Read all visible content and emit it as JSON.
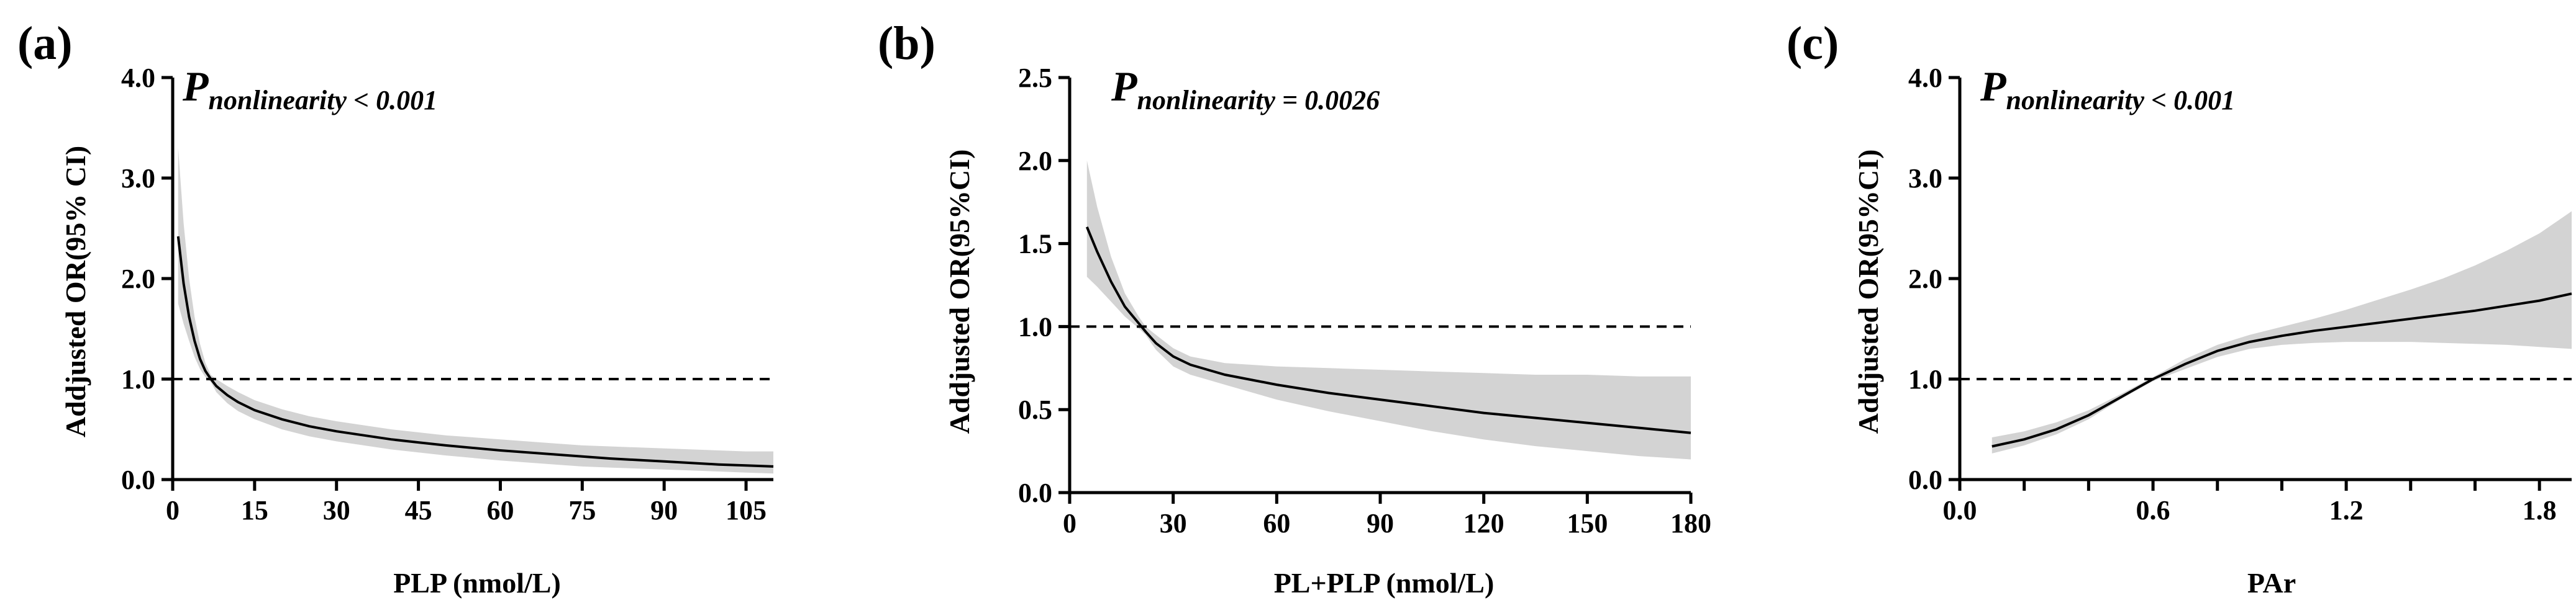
{
  "colors": {
    "ci_band": "#d3d3d3",
    "line": "#000000",
    "reference": "#000000"
  },
  "chart_data": [
    {
      "type": "line",
      "panel_label": "(a)",
      "p_value": {
        "symbol": "P",
        "subscript": "nonlinearity",
        "text": " < 0.001"
      },
      "xlabel": "PLP (nmol/L)",
      "ylabel": "Addjusted OR(95% CI)",
      "xlim": [
        0,
        110
      ],
      "ylim": [
        0,
        4
      ],
      "xticks": [
        0,
        15,
        30,
        45,
        60,
        75,
        90,
        105
      ],
      "xtick_labels": [
        "0",
        "15",
        "30",
        "45",
        "60",
        "75",
        "90",
        "105"
      ],
      "yticks": [
        0,
        1,
        2,
        3,
        4
      ],
      "ytick_labels": [
        "0.0",
        "1.0",
        "2.0",
        "3.0",
        "4.0"
      ],
      "reference_y": 1.0,
      "series": [
        {
          "name": "Adjusted OR",
          "x": [
            1,
            2,
            3,
            4,
            5,
            6,
            7,
            8,
            10,
            12,
            15,
            20,
            25,
            30,
            40,
            45,
            50,
            60,
            70,
            75,
            80,
            90,
            100,
            105,
            110
          ],
          "y": [
            2.42,
            1.95,
            1.62,
            1.38,
            1.2,
            1.08,
            1.0,
            0.93,
            0.84,
            0.77,
            0.69,
            0.6,
            0.53,
            0.48,
            0.4,
            0.37,
            0.34,
            0.29,
            0.25,
            0.23,
            0.21,
            0.18,
            0.15,
            0.14,
            0.13
          ],
          "lower": [
            1.75,
            1.55,
            1.38,
            1.22,
            1.1,
            1.02,
            0.97,
            0.87,
            0.76,
            0.68,
            0.6,
            0.5,
            0.43,
            0.38,
            0.3,
            0.27,
            0.24,
            0.19,
            0.15,
            0.13,
            0.12,
            0.1,
            0.08,
            0.07,
            0.06
          ],
          "upper": [
            3.3,
            2.55,
            2.0,
            1.62,
            1.35,
            1.16,
            1.04,
            1.0,
            0.93,
            0.87,
            0.79,
            0.7,
            0.63,
            0.58,
            0.5,
            0.47,
            0.44,
            0.4,
            0.36,
            0.34,
            0.33,
            0.31,
            0.29,
            0.28,
            0.28
          ]
        }
      ]
    },
    {
      "type": "line",
      "panel_label": "(b)",
      "p_value": {
        "symbol": "P",
        "subscript": "nonlinearity",
        "text": " = 0.0026"
      },
      "xlabel": "PL+PLP (nmol/L)",
      "ylabel": "Addjusted OR(95%CI)",
      "xlim": [
        0,
        180
      ],
      "ylim": [
        0,
        2.5
      ],
      "xticks": [
        0,
        30,
        60,
        90,
        120,
        150,
        180
      ],
      "xtick_labels": [
        "0",
        "30",
        "60",
        "90",
        "120",
        "150",
        "180"
      ],
      "yticks": [
        0,
        0.5,
        1,
        1.5,
        2,
        2.5
      ],
      "ytick_labels": [
        "0.0",
        "0.5",
        "1.0",
        "1.5",
        "2.0",
        "2.5"
      ],
      "reference_y": 1.0,
      "series": [
        {
          "name": "Adjusted OR",
          "x": [
            5,
            8,
            12,
            16,
            20,
            22,
            25,
            30,
            35,
            40,
            45,
            60,
            75,
            90,
            105,
            120,
            135,
            150,
            165,
            180
          ],
          "y": [
            1.6,
            1.45,
            1.27,
            1.12,
            1.02,
            0.97,
            0.9,
            0.82,
            0.77,
            0.74,
            0.71,
            0.65,
            0.6,
            0.56,
            0.52,
            0.48,
            0.45,
            0.42,
            0.39,
            0.36
          ],
          "lower": [
            1.3,
            1.24,
            1.15,
            1.06,
            0.99,
            0.95,
            0.86,
            0.76,
            0.71,
            0.68,
            0.65,
            0.56,
            0.49,
            0.43,
            0.37,
            0.32,
            0.28,
            0.25,
            0.22,
            0.2
          ],
          "upper": [
            2.0,
            1.72,
            1.42,
            1.2,
            1.06,
            1.0,
            0.95,
            0.87,
            0.82,
            0.8,
            0.78,
            0.76,
            0.75,
            0.74,
            0.73,
            0.72,
            0.71,
            0.71,
            0.7,
            0.7
          ]
        }
      ]
    },
    {
      "type": "line",
      "panel_label": "(c)",
      "p_value": {
        "symbol": "P",
        "subscript": "nonlinearity",
        "text": " < 0.001"
      },
      "xlabel": "PAr",
      "ylabel": "Addjusted OR(95%CI)",
      "xlim": [
        0,
        1.9
      ],
      "ylim": [
        0,
        4
      ],
      "xticks": [
        0,
        0.2,
        0.4,
        0.6,
        0.8,
        1.0,
        1.2,
        1.4,
        1.6,
        1.8
      ],
      "xtick_labels": [
        "0.0",
        "",
        "",
        "0.6",
        "",
        "",
        "1.2",
        "",
        "",
        "1.8"
      ],
      "yticks": [
        0,
        1,
        2,
        3,
        4
      ],
      "ytick_labels": [
        "0.0",
        "1.0",
        "2.0",
        "3.0",
        "4.0"
      ],
      "reference_y": 1.0,
      "series": [
        {
          "name": "Adjusted OR",
          "x": [
            0.1,
            0.2,
            0.3,
            0.4,
            0.5,
            0.6,
            0.7,
            0.8,
            0.9,
            1.0,
            1.1,
            1.2,
            1.3,
            1.4,
            1.5,
            1.6,
            1.7,
            1.8,
            1.9
          ],
          "y": [
            0.33,
            0.4,
            0.5,
            0.64,
            0.82,
            1.0,
            1.15,
            1.28,
            1.37,
            1.43,
            1.48,
            1.52,
            1.56,
            1.6,
            1.64,
            1.68,
            1.73,
            1.78,
            1.85
          ],
          "lower": [
            0.26,
            0.34,
            0.45,
            0.6,
            0.8,
            0.98,
            1.1,
            1.22,
            1.3,
            1.34,
            1.36,
            1.37,
            1.37,
            1.37,
            1.36,
            1.35,
            1.34,
            1.32,
            1.3
          ],
          "upper": [
            0.42,
            0.48,
            0.57,
            0.69,
            0.85,
            1.02,
            1.2,
            1.34,
            1.44,
            1.52,
            1.6,
            1.69,
            1.79,
            1.89,
            2.0,
            2.13,
            2.28,
            2.45,
            2.67
          ]
        }
      ]
    }
  ]
}
